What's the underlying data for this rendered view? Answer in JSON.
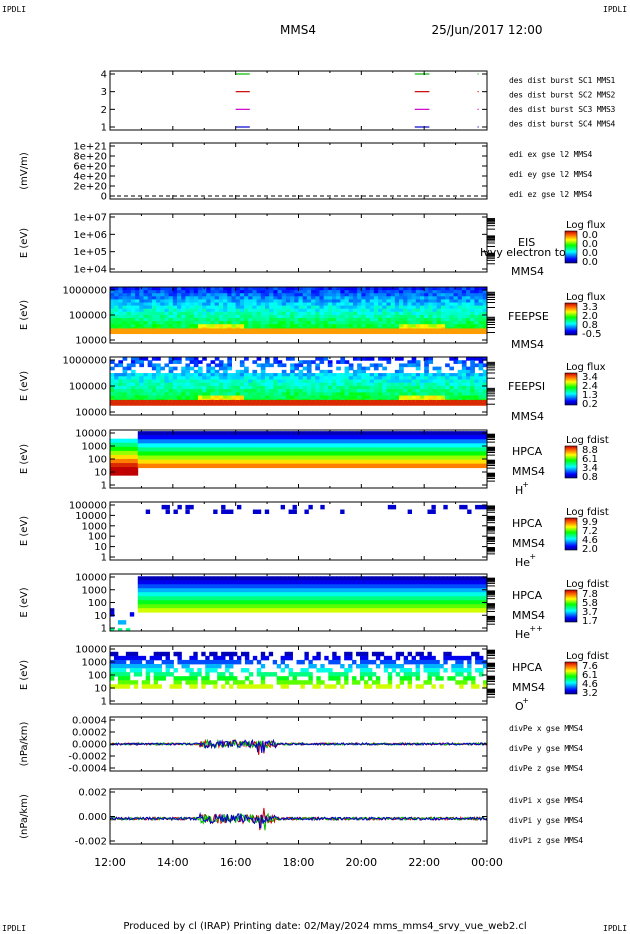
{
  "header": {
    "corner_tl": "IPDLI",
    "corner_tr": "IPDLI",
    "title": "MMS4",
    "datetime": "25/Jun/2017 12:00",
    "corner_bl": "IPDLI",
    "corner_br": "IPDLI"
  },
  "footer": {
    "text": "Produced by cl (IRAP)    Printing date: 02/May/2024    mms_mms4_srvy_vue_web2.cl"
  },
  "chart_data": {
    "type": "multi-panel time series / spectrogram",
    "x_axis": {
      "range": [
        "12:00",
        "00:00"
      ],
      "tick_labels": [
        "12:00",
        "14:00",
        "16:00",
        "18:00",
        "20:00",
        "22:00",
        "00:00"
      ]
    },
    "panels": [
      {
        "type": "line",
        "ytick_labels": [
          "4",
          "3",
          "2",
          "1"
        ],
        "legend": [
          {
            "name": "des dist burst SC1 MMS1",
            "color": "#0000cc"
          },
          {
            "name": "des dist burst SC2 MMS2",
            "color": "#cc00cc"
          },
          {
            "name": "des dist burst SC3 MMS3",
            "color": "#cc0000"
          },
          {
            "name": "des dist burst SC4 MMS4",
            "color": "#00bb00"
          }
        ],
        "series": [
          {
            "name": "des dist burst SC4 MMS4",
            "level": 4,
            "intervals": [
              [
                "16:00",
                "16:27"
              ],
              [
                "21:42",
                "22:10"
              ],
              [
                "23:42",
                "23:44"
              ]
            ],
            "color": "#00bb00"
          },
          {
            "name": "des dist burst SC3 MMS3",
            "level": 3,
            "intervals": [
              [
                "16:00",
                "16:27"
              ],
              [
                "21:42",
                "22:10"
              ],
              [
                "23:42",
                "23:44"
              ]
            ],
            "color": "#cc0000"
          },
          {
            "name": "des dist burst SC2 MMS2",
            "level": 2,
            "intervals": [
              [
                "16:00",
                "16:27"
              ],
              [
                "21:42",
                "22:10"
              ],
              [
                "23:42",
                "23:44"
              ]
            ],
            "color": "#cc00cc"
          },
          {
            "name": "des dist burst SC1 MMS1",
            "level": 1,
            "intervals": [
              [
                "16:00",
                "16:27"
              ],
              [
                "21:42",
                "22:10"
              ],
              [
                "23:42",
                "23:44"
              ]
            ],
            "color": "#0000cc"
          }
        ]
      },
      {
        "type": "line",
        "ylabel": "(mV/m)",
        "ytick_labels": [
          "1e+21",
          "8e+20",
          "6e+20",
          "4e+20",
          "2e+20",
          "0"
        ],
        "legend": [
          {
            "name": "edi ex gse l2 MMS4",
            "color": "#cc0000"
          },
          {
            "name": "edi ey gse l2 MMS4",
            "color": "#00bb00"
          },
          {
            "name": "edi ez gse l2 MMS4",
            "color": "#0000cc"
          }
        ]
      },
      {
        "type": "heatmap",
        "ylabel": "E (eV)",
        "ytick_labels": [
          "1e+07",
          "1e+06",
          "1e+05",
          "1e+04"
        ],
        "labels": [
          "EIS",
          "Ivvy electron to",
          "MMS4"
        ],
        "colorbar_title": "Log flux",
        "colorbar_values": [
          "0.0",
          "0.0",
          "0.0",
          "0.0"
        ]
      },
      {
        "type": "heatmap",
        "ylabel": "E (eV)",
        "ytick_labels": [
          "1000000",
          "100000",
          "10000"
        ],
        "labels": [
          "FEEPSE",
          "MMS4"
        ],
        "colorbar_title": "Log flux",
        "colorbar_values": [
          "3.3",
          "2.0",
          "0.8",
          "-0.5"
        ]
      },
      {
        "type": "heatmap",
        "ylabel": "E (eV)",
        "ytick_labels": [
          "1000000",
          "100000",
          "10000"
        ],
        "labels": [
          "FEEPSI",
          "MMS4"
        ],
        "colorbar_title": "Log flux",
        "colorbar_values": [
          "3.4",
          "2.4",
          "1.3",
          "0.2"
        ]
      },
      {
        "type": "heatmap",
        "ylabel": "E (eV)",
        "ytick_labels": [
          "10000",
          "1000",
          "100",
          "10",
          "1"
        ],
        "labels": [
          "HPCA",
          "MMS4",
          "H",
          "+"
        ],
        "colorbar_title": "Log fdist",
        "colorbar_values": [
          "8.8",
          "6.1",
          "3.4",
          "0.8"
        ]
      },
      {
        "type": "heatmap",
        "ylabel": "E (eV)",
        "ytick_labels": [
          "100000",
          "10000",
          "1000",
          "100",
          "10",
          "1"
        ],
        "labels": [
          "HPCA",
          "MMS4",
          "He",
          "+"
        ],
        "colorbar_title": "Log fdist",
        "colorbar_values": [
          "9.9",
          "7.2",
          "4.6",
          "2.0"
        ]
      },
      {
        "type": "heatmap",
        "ylabel": "E (eV)",
        "ytick_labels": [
          "10000",
          "1000",
          "100",
          "10",
          "1"
        ],
        "labels": [
          "HPCA",
          "MMS4",
          "He",
          "++"
        ],
        "colorbar_title": "Log fdist",
        "colorbar_values": [
          "7.8",
          "5.8",
          "3.7",
          "1.7"
        ]
      },
      {
        "type": "heatmap",
        "ylabel": "E (eV)",
        "ytick_labels": [
          "10000",
          "1000",
          "100",
          "10",
          "1"
        ],
        "labels": [
          "HPCA",
          "MMS4",
          "O",
          "+"
        ],
        "colorbar_title": "Log fdist",
        "colorbar_values": [
          "7.6",
          "6.1",
          "4.6",
          "3.2"
        ]
      },
      {
        "type": "line",
        "ylabel": "(nPa/km)",
        "ytick_labels": [
          "0.0004",
          "0.0002",
          "0.0000",
          "-0.0002",
          "-0.0004"
        ],
        "ylim": [
          -0.0005,
          0.0005
        ],
        "legend": [
          {
            "name": "divPe x gse MMS4",
            "color": "#cc0000"
          },
          {
            "name": "divPe y gse MMS4",
            "color": "#00bb00"
          },
          {
            "name": "divPe z gse MMS4",
            "color": "#0000cc"
          }
        ]
      },
      {
        "type": "line",
        "ylabel": "(nPa/km)",
        "ytick_labels": [
          "0.002",
          "0.000",
          "-0.002"
        ],
        "ylim": [
          -0.003,
          0.0035
        ],
        "legend": [
          {
            "name": "divPi x gse MMS4",
            "color": "#cc0000"
          },
          {
            "name": "divPi y gse MMS4",
            "color": "#00bb00"
          },
          {
            "name": "divPi z gse MMS4",
            "color": "#0000cc"
          }
        ]
      }
    ]
  }
}
